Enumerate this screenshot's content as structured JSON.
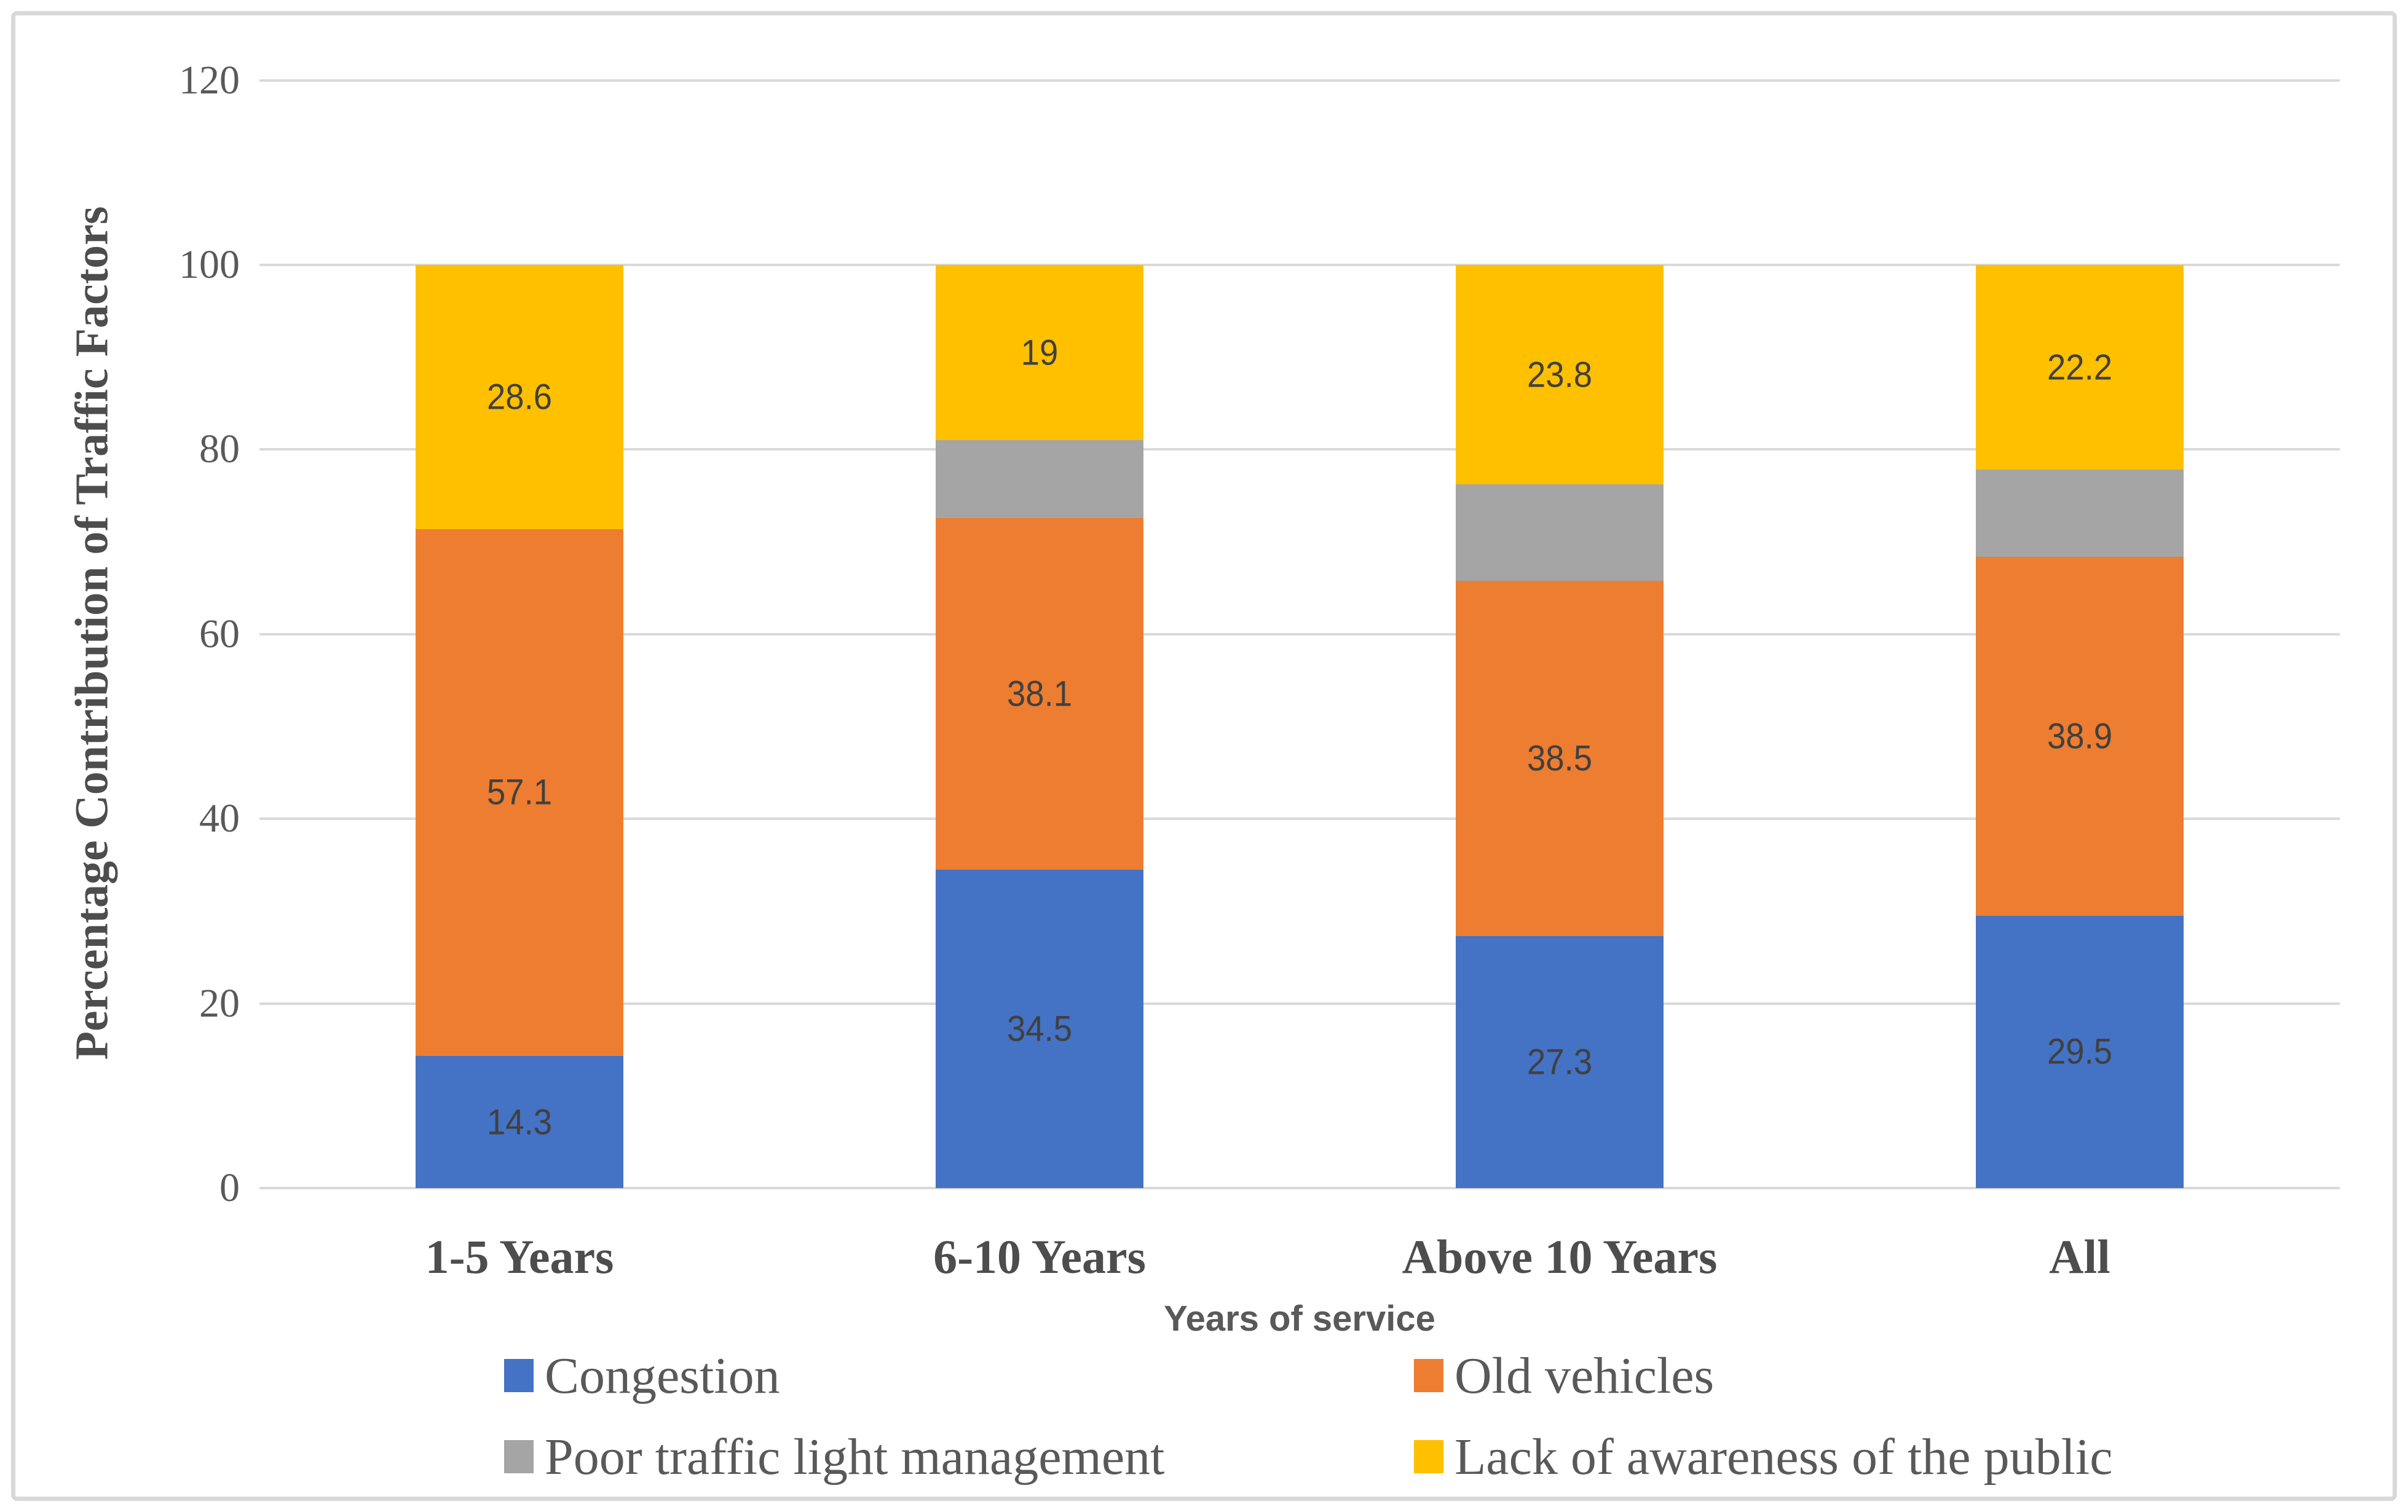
{
  "chart_data": {
    "type": "bar",
    "stacked": true,
    "categories": [
      "1-5 Years",
      "6-10 Years",
      "Above 10 Years",
      "All"
    ],
    "series": [
      {
        "name": "Congestion",
        "color": "#4472C4",
        "values": [
          14.3,
          34.5,
          27.3,
          29.5
        ],
        "data_labels": [
          "14.3",
          "34.5",
          "27.3",
          "29.5"
        ]
      },
      {
        "name": "Old vehicles",
        "color": "#ED7D31",
        "values": [
          57.1,
          38.1,
          38.5,
          38.9
        ],
        "data_labels": [
          "57.1",
          "38.1",
          "38.5",
          "38.9"
        ]
      },
      {
        "name": "Poor traffic light management",
        "color": "#A5A5A5",
        "values": [
          0,
          8.4,
          10.4,
          9.4
        ],
        "data_labels": [
          "",
          "",
          "",
          ""
        ]
      },
      {
        "name": "Lack of awareness of the public",
        "color": "#FFC000",
        "values": [
          28.6,
          19,
          23.8,
          22.2
        ],
        "data_labels": [
          "28.6",
          "19",
          "23.8",
          "22.2"
        ]
      }
    ],
    "xlabel": "Years of service",
    "ylabel": "Percentage Contribution of Traffic Factors",
    "ylim": [
      0,
      120
    ],
    "yticks": [
      0,
      20,
      40,
      60,
      80,
      100,
      120
    ],
    "grid": true,
    "legend_position": "bottom"
  },
  "colors": {
    "grid": "#D9D9D9",
    "tick_text": "#595959",
    "category_text": "#4D4D4D",
    "data_label_text": "#404040",
    "figure_border": "#D9D9D9",
    "background": "#FFFFFF"
  }
}
